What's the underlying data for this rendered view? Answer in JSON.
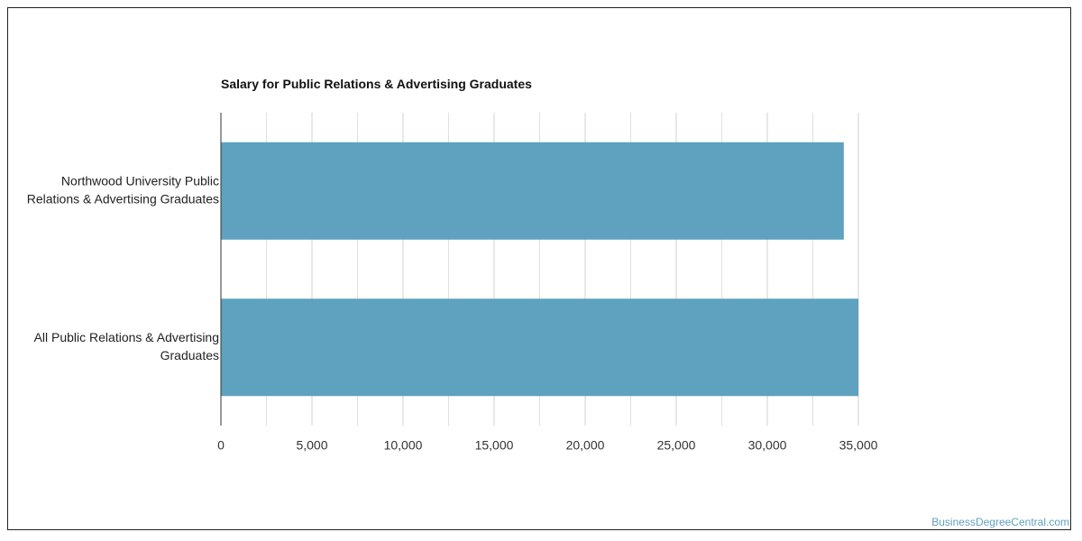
{
  "chart_data": {
    "type": "bar",
    "orientation": "horizontal",
    "title": "Salary for Public Relations & Advertising Graduates",
    "categories": [
      "Northwood University Public Relations & Advertising Graduates",
      "All Public Relations & Advertising Graduates"
    ],
    "category_lines": [
      [
        "Northwood University Public",
        "Relations & Advertising Graduates"
      ],
      [
        "All Public Relations & Advertising",
        "Graduates"
      ]
    ],
    "values": [
      34200,
      35000
    ],
    "xlim": [
      0,
      35000
    ],
    "xticks": [
      "0",
      "5,000",
      "10,000",
      "15,000",
      "20,000",
      "25,000",
      "30,000",
      "35,000"
    ],
    "xtick_values": [
      0,
      5000,
      10000,
      15000,
      20000,
      25000,
      30000,
      35000
    ],
    "grid": true,
    "bar_color": "#5ea2bf",
    "grid_color": "#d9d9d9"
  },
  "footer": {
    "watermark": "BusinessDegreeCentral.com"
  }
}
